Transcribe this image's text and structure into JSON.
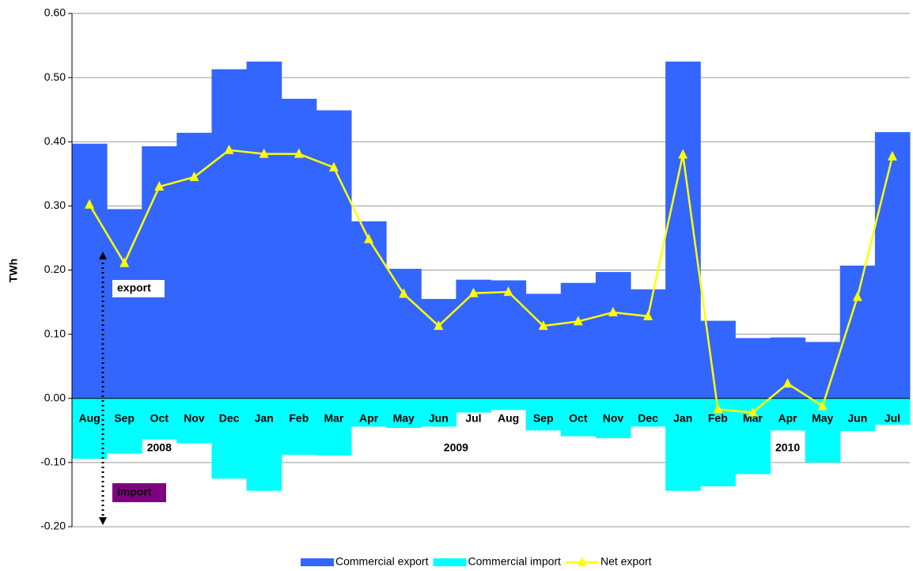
{
  "chart_data": {
    "type": "bar_line",
    "y_label": "TWh",
    "categories": [
      "Aug",
      "Sep",
      "Oct",
      "Nov",
      "Dec",
      "Jan",
      "Feb",
      "Mar",
      "Apr",
      "May",
      "Jun",
      "Jul",
      "Aug",
      "Sep",
      "Oct",
      "Nov",
      "Dec",
      "Jan",
      "Feb",
      "Mar",
      "Apr",
      "May",
      "Jun",
      "Jul"
    ],
    "year_labels": [
      "2008",
      "2009",
      "2010"
    ],
    "annotations": [
      "export",
      "import"
    ],
    "series": [
      {
        "name": "Commercial export",
        "type": "bar",
        "color": "#3366ff",
        "values": [
          0.397,
          0.295,
          0.393,
          0.414,
          0.513,
          0.525,
          0.467,
          0.449,
          0.276,
          0.202,
          0.155,
          0.185,
          0.184,
          0.163,
          0.18,
          0.197,
          0.17,
          0.525,
          0.121,
          0.094,
          0.095,
          0.088,
          0.207,
          0.415
        ]
      },
      {
        "name": "Commercial import",
        "type": "bar",
        "color": "#00ffff",
        "values": [
          -0.094,
          -0.086,
          -0.064,
          -0.07,
          -0.125,
          -0.144,
          -0.088,
          -0.089,
          -0.044,
          -0.046,
          -0.044,
          -0.022,
          -0.018,
          -0.05,
          -0.059,
          -0.062,
          -0.044,
          -0.144,
          -0.137,
          -0.118,
          -0.05,
          -0.1,
          -0.051,
          -0.041
        ]
      },
      {
        "name": "Net export",
        "type": "line",
        "color": "#ffff00",
        "values": [
          0.302,
          0.211,
          0.33,
          0.345,
          0.387,
          0.381,
          0.381,
          0.36,
          0.248,
          0.163,
          0.113,
          0.164,
          0.166,
          0.113,
          0.12,
          0.134,
          0.128,
          0.38,
          -0.017,
          -0.022,
          0.023,
          -0.012,
          0.158,
          0.377
        ]
      }
    ],
    "ylim": [
      -0.2,
      0.6
    ],
    "yticks": [
      {
        "value": -0.2,
        "label": "-0.20"
      },
      {
        "value": -0.1,
        "label": "-0.10"
      },
      {
        "value": 0,
        "label": "0.00"
      },
      {
        "value": 0.1,
        "label": "0.10"
      },
      {
        "value": 0.2,
        "label": "0.20"
      },
      {
        "value": 0.3,
        "label": "0.30"
      },
      {
        "value": 0.4,
        "label": "0.40"
      },
      {
        "value": 0.5,
        "label": "0.50"
      },
      {
        "value": 0.6,
        "label": "0.60"
      }
    ],
    "grid": true,
    "legend": "bottom"
  }
}
